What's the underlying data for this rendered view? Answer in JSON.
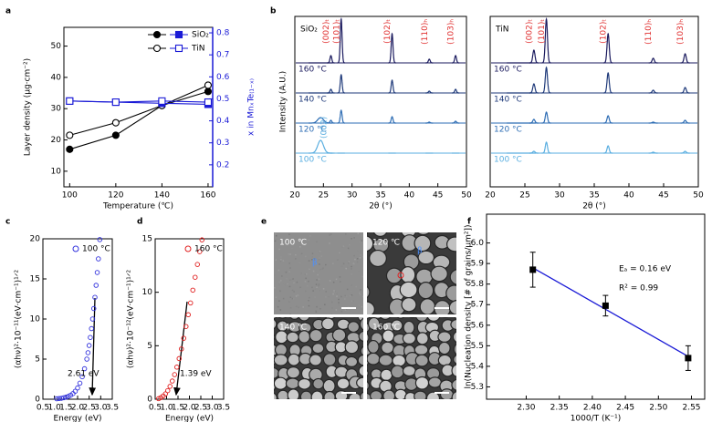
{
  "chart_data": [
    {
      "panel": "a",
      "type": "line",
      "xlabel": "Temperature (℃)",
      "ylabel": "Layer density (μg·cm⁻²)",
      "y2label": "x in MnₓTe₍₁₋ₓ₎",
      "x": [
        100,
        120,
        140,
        160
      ],
      "xlim": [
        97.5,
        162
      ],
      "xticks": [
        100,
        120,
        140,
        160
      ],
      "ylim": [
        5,
        56
      ],
      "yticks": [
        10,
        20,
        30,
        40,
        50
      ],
      "y2lim": [
        0.1,
        0.825
      ],
      "y2ticks": [
        0.2,
        0.3,
        0.4,
        0.5,
        0.6,
        0.7,
        0.8
      ],
      "series": [
        {
          "marker": "filled-circle",
          "color": "#000000",
          "values": [
            17,
            21.5,
            31,
            35.5
          ]
        },
        {
          "marker": "open-circle",
          "color": "#000000",
          "values": [
            21.5,
            25.5,
            31,
            37.5
          ]
        },
        {
          "name": "SiO₂",
          "marker": "filled-square",
          "color": "#1a1ad6",
          "axis": "y2",
          "values": [
            0.49,
            0.485,
            0.48,
            0.475
          ]
        },
        {
          "name": "TiN",
          "marker": "open-square",
          "color": "#1a1ad6",
          "axis": "y2",
          "values": [
            0.49,
            0.485,
            0.49,
            0.485
          ]
        }
      ]
    },
    {
      "panel": "b",
      "type": "spectrum",
      "title": "SiO₂",
      "xlabel": "2θ (°)",
      "ylabel": "Intensity (A.U.)",
      "xlim": [
        20,
        50
      ],
      "xticks": [
        20,
        25,
        30,
        35,
        40,
        45,
        50
      ],
      "x": [
        24.5,
        26.3,
        28.1,
        37,
        43.5,
        48.1
      ],
      "peak_labels": [
        "(002)",
        "(002)ₜ",
        "(101)ₜ",
        "(102)ₜ",
        "(110)ₕ",
        "(103)ₕ"
      ],
      "series": [
        {
          "name": "160 °C",
          "color": "#1a1a5e",
          "values": [
            0,
            8,
            48,
            32,
            4,
            8
          ]
        },
        {
          "name": "140 °C",
          "color": "#1f3a7a",
          "values": [
            0,
            4,
            20,
            14,
            2,
            4
          ]
        },
        {
          "name": "120 °C",
          "color": "#2e6db4",
          "values": [
            6,
            3,
            14,
            7,
            1,
            2
          ]
        },
        {
          "name": "100 °C",
          "color": "#5aaee0",
          "values": [
            14,
            0,
            0,
            0,
            0,
            0
          ]
        }
      ]
    },
    {
      "type": "spectrum",
      "title": "TiN",
      "xlabel": "2θ (°)",
      "xlim": [
        20,
        50
      ],
      "xticks": [
        20,
        25,
        30,
        35,
        40,
        45,
        50
      ],
      "x": [
        24.5,
        26.3,
        28.1,
        37,
        43.5,
        48.1
      ],
      "peak_labels": [
        null,
        "(002)ₜ",
        "(101)ₜ",
        "(102)ₜ",
        "(110)ₕ",
        "(103)ₕ"
      ],
      "series": [
        {
          "name": "160 °C",
          "color": "#1a1a5e",
          "values": [
            0,
            14,
            48,
            32,
            5,
            10
          ]
        },
        {
          "name": "140 °C",
          "color": "#1f3a7a",
          "values": [
            0,
            10,
            28,
            22,
            3,
            6
          ]
        },
        {
          "name": "120 °C",
          "color": "#2e6db4",
          "values": [
            0,
            4,
            12,
            8,
            1,
            3
          ]
        },
        {
          "name": "100 °C",
          "color": "#5aaee0",
          "values": [
            0,
            2,
            12,
            8,
            1,
            2
          ]
        }
      ]
    },
    {
      "panel": "c",
      "type": "scatter",
      "xlabel": "Energy (eV)",
      "ylabel": "(αhν)²·10⁻¹¹(eV·cm⁻¹)¹ᐟ²",
      "xlim": [
        0.5,
        3.5
      ],
      "xticks": [
        0.5,
        {
          "value": 1,
          "label": "1.0"
        },
        1.5,
        {
          "value": 2,
          "label": "2.0"
        },
        2.5,
        {
          "value": 3,
          "label": "3.0"
        },
        3.5
      ],
      "ylim": [
        0,
        20
      ],
      "yticks": [
        0,
        5,
        10,
        15,
        20
      ],
      "annotation": "2.61 eV",
      "series": [
        {
          "name": "100 °C",
          "color": "#3333dd",
          "x": [
            1.1,
            1.2,
            1.3,
            1.4,
            1.5,
            1.6,
            1.7,
            1.8,
            1.9,
            2.0,
            2.1,
            2.2,
            2.3,
            2.4,
            2.45,
            2.5,
            2.55,
            2.6,
            2.65,
            2.7,
            2.75,
            2.8,
            2.85,
            2.9,
            2.96
          ],
          "values": [
            0.05,
            0.08,
            0.12,
            0.18,
            0.25,
            0.35,
            0.5,
            0.7,
            1.0,
            1.4,
            2.0,
            2.8,
            3.8,
            5.0,
            5.8,
            6.7,
            7.7,
            8.8,
            10.0,
            11.3,
            12.7,
            14.2,
            15.8,
            17.5,
            19.9
          ]
        }
      ]
    },
    {
      "panel": "d",
      "type": "scatter",
      "xlabel": "Energy (eV)",
      "ylabel": "(αhν)²·10⁻¹²(eV·cm⁻¹)¹ᐟ²",
      "xlim": [
        0.5,
        3.5
      ],
      "xticks": [
        0.5,
        {
          "value": 1,
          "label": "1.0"
        },
        1.5,
        {
          "value": 2,
          "label": "2.0"
        },
        2.5,
        {
          "value": 3,
          "label": "3.0"
        },
        3.5
      ],
      "ylim": [
        0,
        15
      ],
      "yticks": [
        0,
        5,
        10,
        15
      ],
      "annotation": "1.39 eV",
      "series": [
        {
          "name": "160 °C",
          "color": "#e02020",
          "x": [
            0.65,
            0.75,
            0.85,
            0.95,
            1.05,
            1.15,
            1.25,
            1.35,
            1.45,
            1.55,
            1.65,
            1.75,
            1.85,
            1.95,
            2.05,
            2.15,
            2.25,
            2.35,
            2.45,
            2.55
          ],
          "values": [
            0.05,
            0.15,
            0.3,
            0.5,
            0.8,
            1.2,
            1.7,
            2.3,
            3.0,
            3.8,
            4.7,
            5.7,
            6.8,
            7.9,
            9.0,
            10.2,
            11.4,
            12.6,
            13.8,
            14.9
          ]
        }
      ]
    },
    {
      "panel": "f",
      "type": "scatter",
      "xlabel": "1000/T (K⁻¹)",
      "ylabel": "ln(Nucleation density [# of grains/μm²])",
      "xlim": [
        2.24,
        2.57
      ],
      "xticks": [
        {
          "value": 2.3,
          "label": "2.30"
        },
        2.35,
        {
          "value": 2.4,
          "label": "2.40"
        },
        2.45,
        {
          "value": 2.5,
          "label": "2.50"
        },
        2.55
      ],
      "ylim": [
        5.24,
        6.14
      ],
      "yticks": [
        5.3,
        5.4,
        5.5,
        5.6,
        5.7,
        5.8,
        5.9,
        {
          "value": 6,
          "label": "6.0"
        }
      ],
      "x": [
        2.31,
        2.42,
        2.545
      ],
      "values": [
        5.87,
        5.695,
        5.44
      ],
      "errors": [
        0.085,
        0.05,
        0.06
      ],
      "color": "#000000",
      "fit_color": "#1a1ad6",
      "annotations": [
        "Eₐ = 0.16 eV",
        "R² =  0.99"
      ]
    }
  ],
  "sem_images": {
    "panel": "e",
    "tiles": [
      {
        "label": "100 ℃",
        "phase": "β"
      },
      {
        "label": "120 ℃",
        "phase": "β"
      },
      {
        "label": "140 ℃"
      },
      {
        "label": "160 ℃"
      }
    ]
  }
}
